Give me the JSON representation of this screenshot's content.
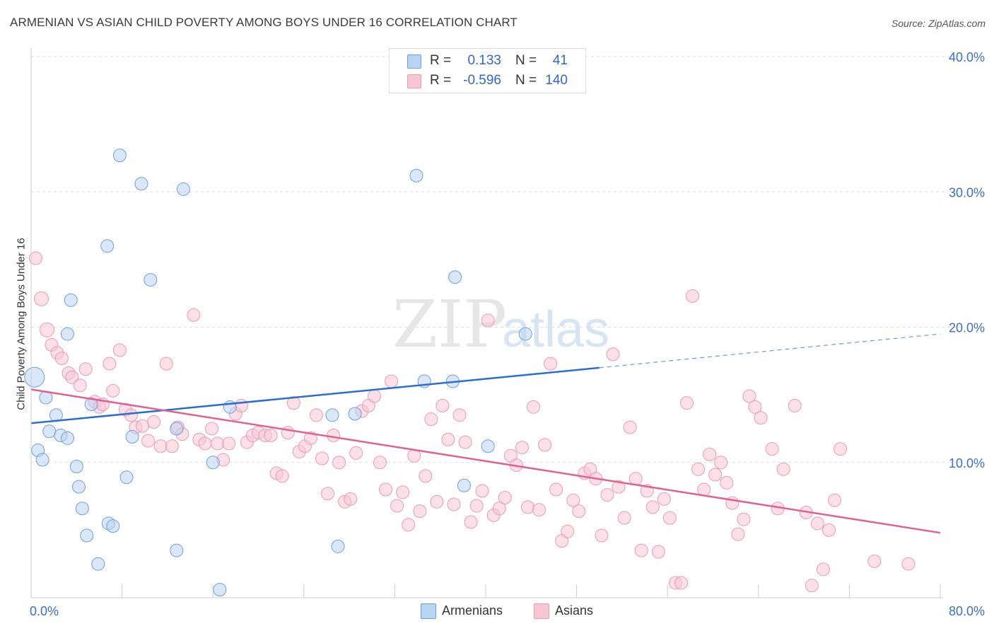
{
  "title": "ARMENIAN VS ASIAN CHILD POVERTY AMONG BOYS UNDER 16 CORRELATION CHART",
  "source": "Source: ZipAtlas.com",
  "watermark": {
    "zip": "ZIP",
    "atlas": "atlas"
  },
  "colors": {
    "armenian_fill": "#b9d3f3",
    "armenian_stroke": "#6f9fdc",
    "armenian_line": "#2a6fd0",
    "asian_fill": "#f7c6d5",
    "asian_stroke": "#e99ab5",
    "asian_line": "#e0628f",
    "axis_text": "#3a6fc4",
    "grid": "#dddddd"
  },
  "correlation": {
    "armenian": {
      "r_label": "R =",
      "r_value": "0.133",
      "n_label": "N =",
      "n_value": "41"
    },
    "asian": {
      "r_label": "R =",
      "r_value": "-0.596",
      "n_label": "N =",
      "n_value": "140"
    }
  },
  "legend": {
    "armenians": "Armenians",
    "asians": "Asians"
  },
  "chart_data": {
    "type": "scatter",
    "title": "ARMENIAN VS ASIAN CHILD POVERTY AMONG BOYS UNDER 16 CORRELATION CHART",
    "xlabel": "",
    "ylabel": "Child Poverty Among Boys Under 16",
    "xlim": [
      0,
      80
    ],
    "ylim": [
      0,
      40
    ],
    "x_tick_labels": [
      {
        "value": 0,
        "label": "0.0%"
      },
      {
        "value": 80,
        "label": "80.0%"
      }
    ],
    "y_tick_labels": [
      {
        "value": 10,
        "label": "10.0%"
      },
      {
        "value": 20,
        "label": "20.0%"
      },
      {
        "value": 30,
        "label": "30.0%"
      },
      {
        "value": 40,
        "label": "40.0%"
      }
    ],
    "grid": true,
    "legend_position": "bottom",
    "series": [
      {
        "name": "Armenians",
        "trend": {
          "x0": 0,
          "y0": 12.9,
          "x1": 50,
          "y1": 17.0,
          "dashed_to_x": 80,
          "dashed_to_y": 19.5
        },
        "points": [
          [
            0.3,
            16.3,
            14
          ],
          [
            0.6,
            10.9,
            9
          ],
          [
            1.0,
            10.2,
            9
          ],
          [
            1.3,
            14.8,
            9
          ],
          [
            1.6,
            12.3,
            9
          ],
          [
            2.2,
            13.5,
            9
          ],
          [
            2.6,
            12.0,
            9
          ],
          [
            3.2,
            19.5,
            9
          ],
          [
            3.5,
            22.0,
            9
          ],
          [
            3.2,
            11.8,
            9
          ],
          [
            4.0,
            9.7,
            9
          ],
          [
            4.2,
            8.2,
            9
          ],
          [
            4.5,
            6.6,
            9
          ],
          [
            4.9,
            4.6,
            9
          ],
          [
            5.3,
            14.3,
            9
          ],
          [
            5.9,
            2.5,
            9
          ],
          [
            6.7,
            26.0,
            9
          ],
          [
            6.8,
            5.5,
            9
          ],
          [
            7.2,
            5.3,
            9
          ],
          [
            7.8,
            32.7,
            9
          ],
          [
            8.4,
            8.9,
            9
          ],
          [
            8.9,
            11.9,
            9
          ],
          [
            9.7,
            30.6,
            9
          ],
          [
            10.5,
            23.5,
            9
          ],
          [
            12.8,
            12.5,
            9
          ],
          [
            13.4,
            30.2,
            9
          ],
          [
            12.8,
            3.5,
            9
          ],
          [
            16.0,
            10.0,
            9
          ],
          [
            16.6,
            0.6,
            9
          ],
          [
            17.5,
            14.1,
            9
          ],
          [
            26.5,
            13.5,
            9
          ],
          [
            27.0,
            3.8,
            9
          ],
          [
            28.5,
            13.6,
            9
          ],
          [
            33.9,
            31.2,
            9
          ],
          [
            34.6,
            16.0,
            9
          ],
          [
            37.1,
            16.0,
            9
          ],
          [
            37.3,
            23.7,
            9
          ],
          [
            38.1,
            8.3,
            9
          ],
          [
            40.2,
            11.2,
            9
          ],
          [
            43.5,
            19.5,
            9
          ]
        ]
      },
      {
        "name": "Asians",
        "trend": {
          "x0": 0,
          "y0": 15.4,
          "x1": 80,
          "y1": 4.8
        },
        "points": [
          [
            0.4,
            25.1,
            9
          ],
          [
            0.9,
            22.1,
            10
          ],
          [
            1.4,
            19.8,
            10
          ],
          [
            1.8,
            18.7,
            9
          ],
          [
            2.3,
            18.1,
            9
          ],
          [
            2.7,
            17.7,
            9
          ],
          [
            3.3,
            16.6,
            9
          ],
          [
            3.6,
            16.3,
            9
          ],
          [
            4.3,
            15.7,
            9
          ],
          [
            4.8,
            16.9,
            9
          ],
          [
            5.6,
            14.5,
            9
          ],
          [
            6.0,
            14.1,
            9
          ],
          [
            6.3,
            14.3,
            9
          ],
          [
            6.9,
            17.3,
            9
          ],
          [
            7.2,
            15.3,
            9
          ],
          [
            7.8,
            18.3,
            9
          ],
          [
            8.3,
            13.9,
            9
          ],
          [
            8.8,
            13.5,
            9
          ],
          [
            9.2,
            12.6,
            9
          ],
          [
            9.8,
            12.7,
            9
          ],
          [
            10.3,
            11.6,
            9
          ],
          [
            10.8,
            13.0,
            9
          ],
          [
            11.4,
            11.2,
            9
          ],
          [
            11.9,
            17.3,
            9
          ],
          [
            12.4,
            11.2,
            9
          ],
          [
            12.9,
            12.6,
            9
          ],
          [
            13.3,
            12.1,
            9
          ],
          [
            14.3,
            20.9,
            9
          ],
          [
            14.8,
            11.7,
            9
          ],
          [
            15.3,
            11.4,
            9
          ],
          [
            15.9,
            12.5,
            9
          ],
          [
            16.4,
            11.4,
            9
          ],
          [
            16.9,
            10.2,
            9
          ],
          [
            17.4,
            11.4,
            9
          ],
          [
            18.0,
            13.6,
            9
          ],
          [
            18.5,
            14.2,
            9
          ],
          [
            19.0,
            11.5,
            9
          ],
          [
            19.5,
            12.0,
            9
          ],
          [
            20.0,
            12.2,
            9
          ],
          [
            20.6,
            12.0,
            9
          ],
          [
            21.1,
            12.0,
            9
          ],
          [
            21.6,
            9.2,
            9
          ],
          [
            22.1,
            9.0,
            9
          ],
          [
            22.6,
            12.2,
            9
          ],
          [
            23.1,
            14.4,
            9
          ],
          [
            23.6,
            10.8,
            9
          ],
          [
            24.1,
            11.2,
            9
          ],
          [
            24.6,
            11.8,
            9
          ],
          [
            25.1,
            13.5,
            9
          ],
          [
            25.6,
            10.3,
            9
          ],
          [
            26.1,
            7.7,
            9
          ],
          [
            26.6,
            12.0,
            9
          ],
          [
            27.1,
            10.0,
            9
          ],
          [
            27.6,
            7.1,
            9
          ],
          [
            28.1,
            7.3,
            9
          ],
          [
            28.6,
            10.7,
            9
          ],
          [
            29.1,
            13.8,
            9
          ],
          [
            29.7,
            14.2,
            9
          ],
          [
            30.2,
            14.9,
            9
          ],
          [
            30.7,
            10.0,
            9
          ],
          [
            31.2,
            8.0,
            9
          ],
          [
            31.7,
            16.0,
            9
          ],
          [
            32.2,
            6.8,
            9
          ],
          [
            32.7,
            7.8,
            9
          ],
          [
            33.2,
            5.4,
            9
          ],
          [
            33.7,
            10.5,
            9
          ],
          [
            34.2,
            6.4,
            9
          ],
          [
            34.7,
            9.0,
            9
          ],
          [
            35.2,
            13.2,
            9
          ],
          [
            35.7,
            7.1,
            9
          ],
          [
            36.2,
            14.2,
            9
          ],
          [
            36.7,
            11.7,
            9
          ],
          [
            37.2,
            6.9,
            9
          ],
          [
            37.7,
            13.5,
            9
          ],
          [
            38.2,
            11.5,
            9
          ],
          [
            38.7,
            5.6,
            9
          ],
          [
            39.2,
            6.8,
            9
          ],
          [
            39.7,
            7.9,
            9
          ],
          [
            40.2,
            20.5,
            9
          ],
          [
            40.7,
            6.1,
            9
          ],
          [
            41.2,
            6.6,
            9
          ],
          [
            41.7,
            7.4,
            9
          ],
          [
            42.2,
            10.5,
            9
          ],
          [
            42.7,
            9.8,
            9
          ],
          [
            43.2,
            11.1,
            9
          ],
          [
            43.7,
            6.7,
            9
          ],
          [
            44.2,
            14.1,
            9
          ],
          [
            44.7,
            6.5,
            9
          ],
          [
            45.2,
            11.3,
            9
          ],
          [
            45.7,
            17.3,
            9
          ],
          [
            46.2,
            8.0,
            9
          ],
          [
            46.7,
            4.2,
            9
          ],
          [
            47.2,
            4.9,
            9
          ],
          [
            47.7,
            7.2,
            9
          ],
          [
            48.2,
            6.4,
            9
          ],
          [
            48.7,
            9.2,
            9
          ],
          [
            49.2,
            9.5,
            9
          ],
          [
            49.7,
            8.8,
            9
          ],
          [
            50.2,
            4.6,
            9
          ],
          [
            50.7,
            7.6,
            9
          ],
          [
            51.2,
            18.0,
            9
          ],
          [
            51.7,
            8.2,
            9
          ],
          [
            52.2,
            5.9,
            9
          ],
          [
            52.7,
            12.6,
            9
          ],
          [
            53.2,
            8.8,
            9
          ],
          [
            53.7,
            3.5,
            9
          ],
          [
            54.2,
            7.9,
            9
          ],
          [
            54.7,
            6.7,
            9
          ],
          [
            55.2,
            3.4,
            9
          ],
          [
            55.7,
            7.3,
            9
          ],
          [
            56.2,
            5.9,
            9
          ],
          [
            56.7,
            1.1,
            9
          ],
          [
            57.2,
            1.1,
            9
          ],
          [
            57.7,
            14.4,
            9
          ],
          [
            58.2,
            22.3,
            9
          ],
          [
            58.7,
            9.5,
            9
          ],
          [
            59.2,
            8.0,
            9
          ],
          [
            59.7,
            10.6,
            9
          ],
          [
            60.2,
            9.1,
            9
          ],
          [
            60.7,
            10.0,
            9
          ],
          [
            61.2,
            8.5,
            9
          ],
          [
            61.7,
            7.0,
            9
          ],
          [
            62.2,
            4.7,
            9
          ],
          [
            62.7,
            5.8,
            9
          ],
          [
            63.2,
            14.9,
            9
          ],
          [
            63.7,
            14.1,
            9
          ],
          [
            64.2,
            13.3,
            9
          ],
          [
            65.2,
            11.0,
            9
          ],
          [
            65.7,
            6.6,
            9
          ],
          [
            66.2,
            9.5,
            9
          ],
          [
            67.2,
            14.2,
            9
          ],
          [
            68.2,
            6.3,
            9
          ],
          [
            68.7,
            0.9,
            9
          ],
          [
            69.2,
            5.5,
            9
          ],
          [
            69.7,
            2.1,
            9
          ],
          [
            70.2,
            5.0,
            9
          ],
          [
            70.7,
            7.2,
            9
          ],
          [
            71.2,
            11.0,
            9
          ],
          [
            74.2,
            2.7,
            9
          ],
          [
            77.2,
            2.5,
            9
          ]
        ]
      }
    ]
  }
}
